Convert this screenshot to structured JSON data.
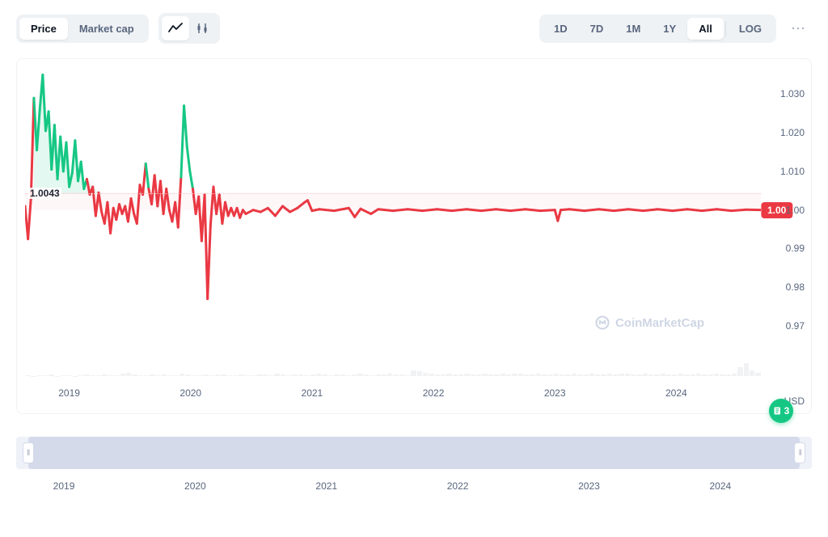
{
  "toolbar": {
    "metric_tabs": [
      "Price",
      "Market cap"
    ],
    "metric_active": 0,
    "chart_style_active": 0,
    "ranges": [
      "1D",
      "7D",
      "1M",
      "1Y",
      "All"
    ],
    "range_active": 4,
    "log_label": "LOG",
    "log_active": false
  },
  "chart": {
    "type": "line",
    "x_years": [
      "2019",
      "2020",
      "2021",
      "2022",
      "2023",
      "2024"
    ],
    "x_positions_pct": [
      6,
      22.5,
      39,
      55.5,
      72,
      88.5
    ],
    "y_ticks": [
      0.97,
      0.98,
      0.99,
      1.0,
      1.01,
      1.02,
      1.03
    ],
    "y_tick_labels": [
      "0.97",
      "0.98",
      "0.99",
      "1.00",
      "1.010",
      "1.020",
      "1.030"
    ],
    "ylim": [
      0.957,
      1.037
    ],
    "currency_label": "USD",
    "start_value_label": "1.0043",
    "start_value": 1.0043,
    "last_value_label": "1.00",
    "last_value": 1.0,
    "ref_band_top": 1.0045,
    "colors": {
      "up": "#16c784",
      "down": "#ea3943",
      "grid": "#eff2f5",
      "axis_text": "#58667e",
      "volume": "#e6e8ec",
      "background": "#ffffff",
      "ref_dotted": "#f5c2c5",
      "badge_bg": "#ea3943",
      "watermark": "#cfd6e4"
    },
    "watermark_text": "CoinMarketCap",
    "series": [
      {
        "x": 0.0,
        "y": 1.001
      },
      {
        "x": 0.004,
        "y": 0.9925
      },
      {
        "x": 0.008,
        "y": 1.003
      },
      {
        "x": 0.012,
        "y": 1.029
      },
      {
        "x": 0.016,
        "y": 1.0155
      },
      {
        "x": 0.02,
        "y": 1.026
      },
      {
        "x": 0.024,
        "y": 1.035
      },
      {
        "x": 0.028,
        "y": 1.0205
      },
      {
        "x": 0.032,
        "y": 1.0255
      },
      {
        "x": 0.036,
        "y": 1.0105
      },
      {
        "x": 0.04,
        "y": 1.022
      },
      {
        "x": 0.044,
        "y": 1.008
      },
      {
        "x": 0.048,
        "y": 1.019
      },
      {
        "x": 0.052,
        "y": 1.01
      },
      {
        "x": 0.056,
        "y": 1.0175
      },
      {
        "x": 0.06,
        "y": 1.006
      },
      {
        "x": 0.064,
        "y": 1.0095
      },
      {
        "x": 0.068,
        "y": 1.018
      },
      {
        "x": 0.072,
        "y": 1.0075
      },
      {
        "x": 0.076,
        "y": 1.0125
      },
      {
        "x": 0.08,
        "y": 1.0055
      },
      {
        "x": 0.084,
        "y": 1.008
      },
      {
        "x": 0.088,
        "y": 1.004
      },
      {
        "x": 0.092,
        "y": 1.006
      },
      {
        "x": 0.096,
        "y": 0.9985
      },
      {
        "x": 0.1,
        "y": 1.0045
      },
      {
        "x": 0.104,
        "y": 0.9995
      },
      {
        "x": 0.108,
        "y": 0.9965
      },
      {
        "x": 0.112,
        "y": 1.002
      },
      {
        "x": 0.116,
        "y": 0.994
      },
      {
        "x": 0.12,
        "y": 1.0005
      },
      {
        "x": 0.124,
        "y": 0.9975
      },
      {
        "x": 0.128,
        "y": 1.0015
      },
      {
        "x": 0.132,
        "y": 0.999
      },
      {
        "x": 0.136,
        "y": 1.001
      },
      {
        "x": 0.14,
        "y": 0.997
      },
      {
        "x": 0.144,
        "y": 1.003
      },
      {
        "x": 0.148,
        "y": 0.999
      },
      {
        "x": 0.152,
        "y": 0.9965
      },
      {
        "x": 0.156,
        "y": 1.0065
      },
      {
        "x": 0.16,
        "y": 1.004
      },
      {
        "x": 0.164,
        "y": 1.012
      },
      {
        "x": 0.168,
        "y": 1.0055
      },
      {
        "x": 0.172,
        "y": 1.0015
      },
      {
        "x": 0.176,
        "y": 1.009
      },
      {
        "x": 0.18,
        "y": 1.001
      },
      {
        "x": 0.184,
        "y": 1.0075
      },
      {
        "x": 0.188,
        "y": 0.999
      },
      {
        "x": 0.192,
        "y": 1.0055
      },
      {
        "x": 0.196,
        "y": 1.0
      },
      {
        "x": 0.2,
        "y": 0.997
      },
      {
        "x": 0.204,
        "y": 1.002
      },
      {
        "x": 0.208,
        "y": 0.9955
      },
      {
        "x": 0.212,
        "y": 1.0085
      },
      {
        "x": 0.216,
        "y": 1.027
      },
      {
        "x": 0.22,
        "y": 1.0165
      },
      {
        "x": 0.224,
        "y": 1.01
      },
      {
        "x": 0.228,
        "y": 1.0055
      },
      {
        "x": 0.232,
        "y": 0.999
      },
      {
        "x": 0.236,
        "y": 1.0035
      },
      {
        "x": 0.24,
        "y": 0.992
      },
      {
        "x": 0.244,
        "y": 1.004
      },
      {
        "x": 0.248,
        "y": 0.977
      },
      {
        "x": 0.252,
        "y": 0.996
      },
      {
        "x": 0.256,
        "y": 1.006
      },
      {
        "x": 0.26,
        "y": 0.999
      },
      {
        "x": 0.264,
        "y": 1.004
      },
      {
        "x": 0.268,
        "y": 0.9965
      },
      {
        "x": 0.272,
        "y": 1.002
      },
      {
        "x": 0.276,
        "y": 0.9985
      },
      {
        "x": 0.28,
        "y": 1.0005
      },
      {
        "x": 0.284,
        "y": 0.9985
      },
      {
        "x": 0.288,
        "y": 1.0005
      },
      {
        "x": 0.292,
        "y": 0.998
      },
      {
        "x": 0.296,
        "y": 1.0
      },
      {
        "x": 0.3,
        "y": 0.999
      },
      {
        "x": 0.31,
        "y": 1.0
      },
      {
        "x": 0.32,
        "y": 0.9995
      },
      {
        "x": 0.33,
        "y": 1.0005
      },
      {
        "x": 0.34,
        "y": 0.9985
      },
      {
        "x": 0.35,
        "y": 1.001
      },
      {
        "x": 0.36,
        "y": 0.9995
      },
      {
        "x": 0.37,
        "y": 1.0005
      },
      {
        "x": 0.38,
        "y": 1.002
      },
      {
        "x": 0.384,
        "y": 1.0025
      },
      {
        "x": 0.39,
        "y": 0.9998
      },
      {
        "x": 0.4,
        "y": 1.0002
      },
      {
        "x": 0.42,
        "y": 0.9998
      },
      {
        "x": 0.44,
        "y": 1.0005
      },
      {
        "x": 0.448,
        "y": 0.9982
      },
      {
        "x": 0.456,
        "y": 1.0003
      },
      {
        "x": 0.47,
        "y": 0.999
      },
      {
        "x": 0.48,
        "y": 1.0002
      },
      {
        "x": 0.5,
        "y": 0.9998
      },
      {
        "x": 0.52,
        "y": 1.0002
      },
      {
        "x": 0.54,
        "y": 0.9998
      },
      {
        "x": 0.56,
        "y": 1.0002
      },
      {
        "x": 0.58,
        "y": 0.9998
      },
      {
        "x": 0.6,
        "y": 1.0002
      },
      {
        "x": 0.62,
        "y": 0.9998
      },
      {
        "x": 0.64,
        "y": 1.0002
      },
      {
        "x": 0.66,
        "y": 0.9998
      },
      {
        "x": 0.68,
        "y": 1.0002
      },
      {
        "x": 0.7,
        "y": 0.9998
      },
      {
        "x": 0.72,
        "y": 1.0
      },
      {
        "x": 0.724,
        "y": 0.9972
      },
      {
        "x": 0.728,
        "y": 1.0
      },
      {
        "x": 0.74,
        "y": 1.0002
      },
      {
        "x": 0.76,
        "y": 0.9998
      },
      {
        "x": 0.78,
        "y": 1.0002
      },
      {
        "x": 0.8,
        "y": 0.9998
      },
      {
        "x": 0.82,
        "y": 1.0002
      },
      {
        "x": 0.84,
        "y": 0.9998
      },
      {
        "x": 0.86,
        "y": 1.0002
      },
      {
        "x": 0.88,
        "y": 0.9998
      },
      {
        "x": 0.9,
        "y": 1.0002
      },
      {
        "x": 0.92,
        "y": 0.9998
      },
      {
        "x": 0.94,
        "y": 1.0002
      },
      {
        "x": 0.96,
        "y": 0.9998
      },
      {
        "x": 0.98,
        "y": 1.0001
      },
      {
        "x": 1.0,
        "y": 1.0
      }
    ],
    "volume_heights_pct": [
      2,
      1,
      3,
      2,
      4,
      1,
      2,
      3,
      1,
      2,
      5,
      3,
      2,
      4,
      3,
      2,
      6,
      8,
      4,
      3,
      2,
      5,
      3,
      4,
      2,
      3,
      6,
      4,
      3,
      2,
      4,
      3,
      5,
      4,
      3,
      2,
      4,
      3,
      2,
      5,
      4,
      3,
      6,
      4,
      3,
      5,
      4,
      3,
      5,
      6,
      4,
      3,
      5,
      4,
      3,
      5,
      6,
      4,
      3,
      5,
      4,
      6,
      5,
      4,
      3,
      15,
      12,
      8,
      6,
      5,
      4,
      6,
      5,
      4,
      6,
      5,
      4,
      6,
      5,
      4,
      6,
      5,
      7,
      6,
      5,
      4,
      6,
      5,
      4,
      6,
      5,
      4,
      6,
      5,
      4,
      6,
      5,
      4,
      6,
      5,
      7,
      6,
      5,
      4,
      6,
      5,
      4,
      6,
      5,
      4,
      6,
      5,
      4,
      6,
      5,
      4,
      6,
      5,
      4,
      6,
      25,
      35,
      15,
      8
    ]
  },
  "fab": {
    "count": "3"
  },
  "navigator": {
    "x_labels": [
      "2019",
      "2020",
      "2021",
      "2022",
      "2023",
      "2024"
    ],
    "x_positions_pct": [
      6,
      22.5,
      39,
      55.5,
      72,
      88.5
    ],
    "selection_start_pct": 1.5,
    "selection_end_pct": 98.5
  }
}
